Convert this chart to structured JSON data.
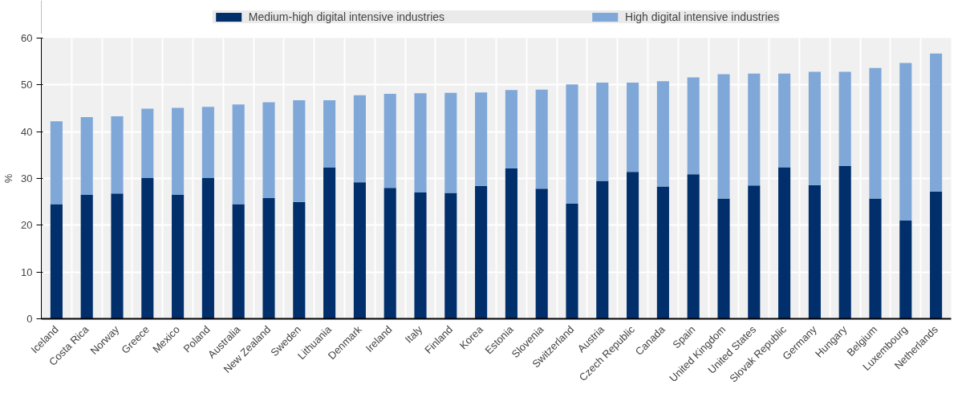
{
  "chart_data": {
    "type": "bar",
    "stacked": true,
    "ylabel": "%",
    "categories": [
      "Iceland",
      "Costa Rica",
      "Norway",
      "Greece",
      "Mexico",
      "Poland",
      "Australia",
      "New Zealand",
      "Sweden",
      "Lithuania",
      "Denmark",
      "Ireland",
      "Italy",
      "Finland",
      "Korea",
      "Estonia",
      "Slovenia",
      "Switzerland",
      "Austria",
      "Czech Republic",
      "Canada",
      "Spain",
      "United Kingdom",
      "United States",
      "Slovak Republic",
      "Germany",
      "Hungary",
      "Belgium",
      "Luxembourg",
      "Netherlands"
    ],
    "series": [
      {
        "name": "Medium-high digital intensive industries",
        "color": "#002f6c",
        "values": [
          24.5,
          26.5,
          26.8,
          30.1,
          26.5,
          30.1,
          24.5,
          25.8,
          25.0,
          32.3,
          29.2,
          28.0,
          27.0,
          26.9,
          28.4,
          32.2,
          27.8,
          24.6,
          29.5,
          31.4,
          28.3,
          30.9,
          25.7,
          28.5,
          32.4,
          28.6,
          32.7,
          25.7,
          21.0,
          27.2
        ]
      },
      {
        "name": "High digital intensive industries",
        "color": "#7fa8d9",
        "values": [
          17.7,
          16.6,
          16.5,
          14.8,
          18.6,
          15.2,
          21.3,
          20.5,
          21.7,
          14.4,
          18.6,
          20.1,
          21.2,
          21.4,
          20.0,
          16.7,
          21.2,
          25.5,
          21.0,
          19.1,
          22.5,
          20.7,
          26.6,
          23.9,
          20.0,
          24.2,
          20.1,
          27.9,
          33.7,
          29.5
        ]
      }
    ],
    "ylim": [
      0,
      60
    ],
    "yticks": [
      0,
      10,
      20,
      30,
      40,
      50,
      60
    ],
    "grid": true,
    "legend": "top"
  }
}
